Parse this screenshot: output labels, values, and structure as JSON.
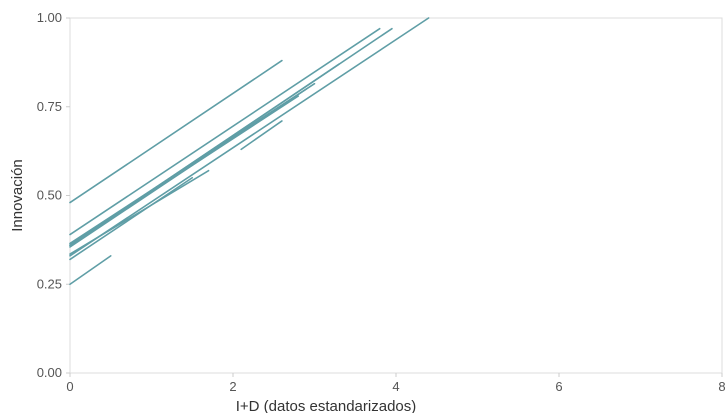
{
  "chart_data": {
    "type": "line",
    "title": "",
    "xlabel": "I+D (datos estandarizados)",
    "ylabel": "Innovación",
    "xlim": [
      0,
      8
    ],
    "ylim": [
      0,
      1
    ],
    "x_ticks": [
      "0",
      "2",
      "4",
      "6",
      "8"
    ],
    "y_ticks": [
      "0.00",
      "0.25",
      "0.50",
      "0.75",
      "1.00"
    ],
    "grid": false,
    "legend": "none",
    "line_color": "#5f9ea6",
    "series": [
      {
        "x": [
          0.0,
          2.6
        ],
        "y": [
          0.48,
          0.88
        ]
      },
      {
        "x": [
          0.0,
          3.8
        ],
        "y": [
          0.39,
          0.97
        ]
      },
      {
        "x": [
          0.0,
          3.95
        ],
        "y": [
          0.36,
          0.97
        ]
      },
      {
        "x": [
          0.0,
          4.4
        ],
        "y": [
          0.33,
          1.0
        ]
      },
      {
        "x": [
          0.0,
          3.3
        ],
        "y": [
          0.36,
          0.87
        ]
      },
      {
        "x": [
          0.0,
          3.0
        ],
        "y": [
          0.365,
          0.815
        ]
      },
      {
        "x": [
          0.0,
          2.9
        ],
        "y": [
          0.355,
          0.8
        ]
      },
      {
        "x": [
          0.0,
          2.8
        ],
        "y": [
          0.36,
          0.78
        ]
      },
      {
        "x": [
          0.0,
          1.5
        ],
        "y": [
          0.32,
          0.55
        ]
      },
      {
        "x": [
          0.0,
          1.7
        ],
        "y": [
          0.335,
          0.57
        ]
      },
      {
        "x": [
          0.0,
          0.5
        ],
        "y": [
          0.25,
          0.33
        ]
      },
      {
        "x": [
          2.1,
          2.6
        ],
        "y": [
          0.63,
          0.71
        ]
      }
    ]
  }
}
